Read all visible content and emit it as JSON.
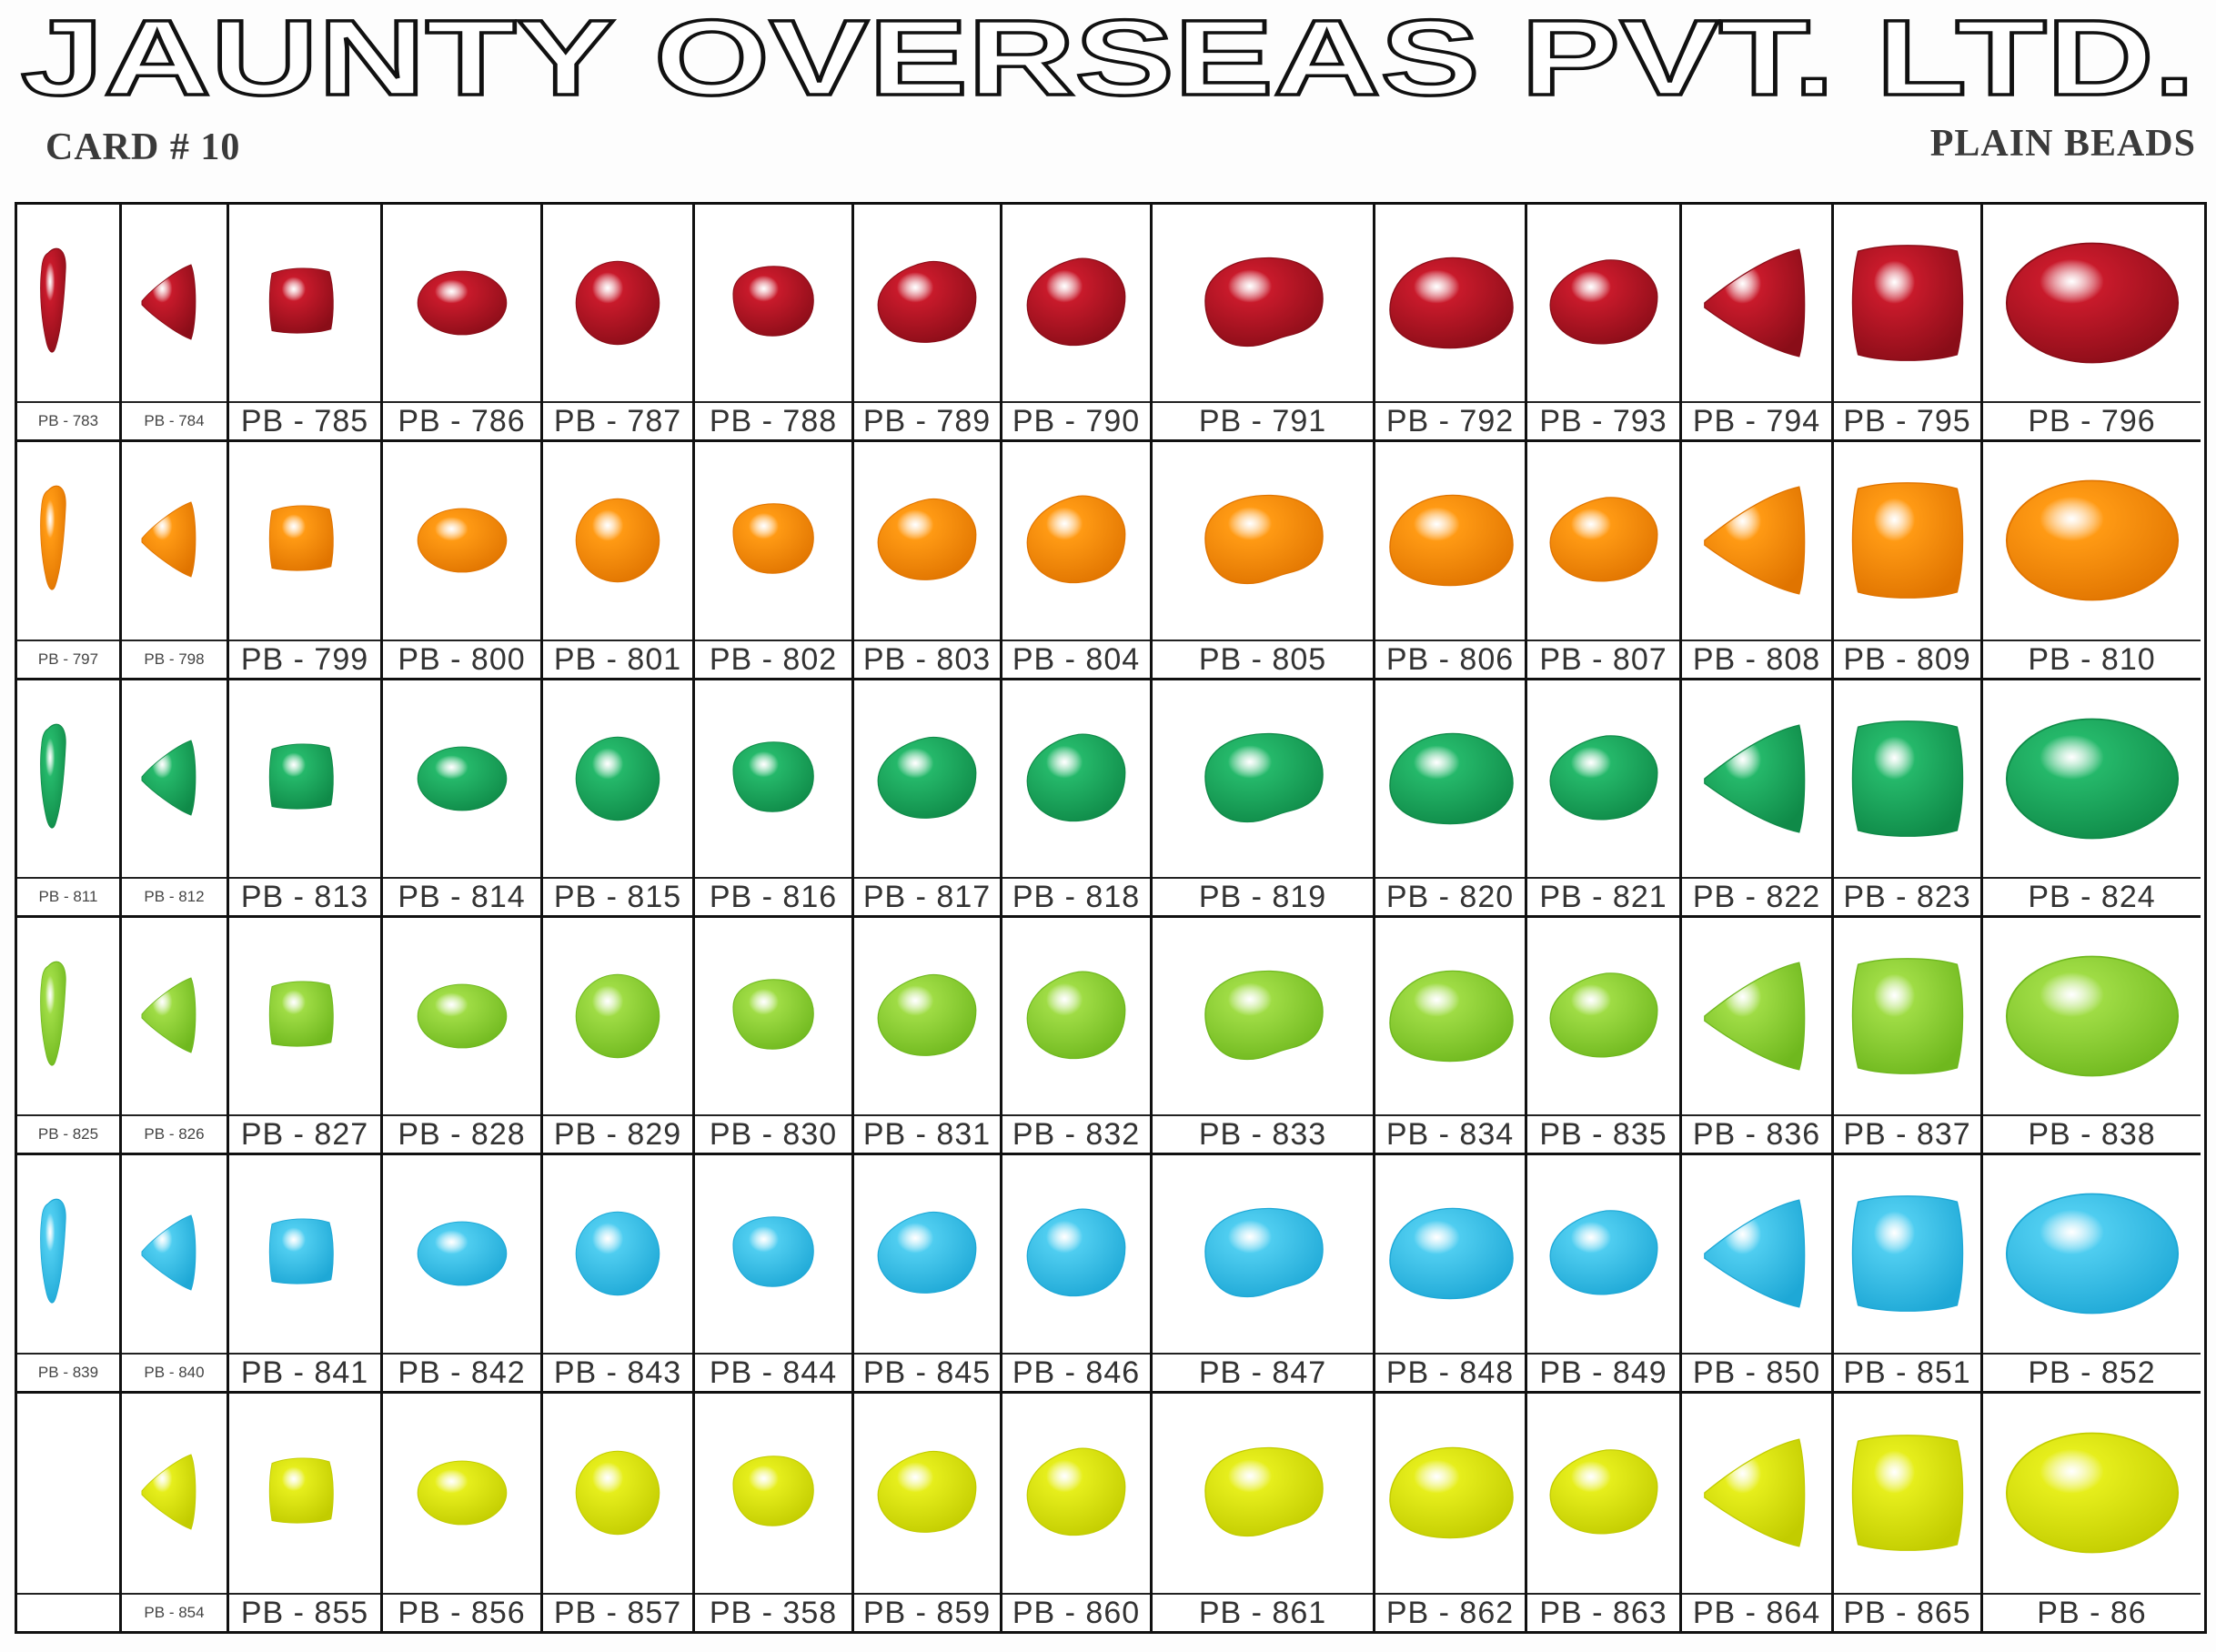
{
  "header": {
    "company": "JAUNTY OVERSEAS PVT. LTD.",
    "card": "CARD # 10",
    "category": "PLAIN BEADS"
  },
  "columns": [
    "drop",
    "cone",
    "cube",
    "oval",
    "round",
    "nugget-small",
    "nugget",
    "nugget",
    "nugget-large",
    "nugget-round",
    "nugget",
    "triangle",
    "pillow",
    "oval-large"
  ],
  "rows": [
    {
      "color": "red",
      "fill": "#c81a2b",
      "dark": "#8a0d18",
      "codes": [
        "PB - 783",
        "PB - 784",
        "PB - 785",
        "PB - 786",
        "PB - 787",
        "PB - 788",
        "PB - 789",
        "PB - 790",
        "PB - 791",
        "PB - 792",
        "PB - 793",
        "PB - 794",
        "PB - 795",
        "PB - 796"
      ]
    },
    {
      "color": "orange",
      "fill": "#ff9a14",
      "dark": "#e07400",
      "codes": [
        "PB - 797",
        "PB - 798",
        "PB - 799",
        "PB - 800",
        "PB - 801",
        "PB - 802",
        "PB - 803",
        "PB - 804",
        "PB - 805",
        "PB - 806",
        "PB - 807",
        "PB - 808",
        "PB - 809",
        "PB - 810"
      ]
    },
    {
      "color": "green",
      "fill": "#25b86a",
      "dark": "#0f8a48",
      "codes": [
        "PB - 811",
        "PB - 812",
        "PB - 813",
        "PB - 814",
        "PB - 815",
        "PB - 816",
        "PB - 817",
        "PB - 818",
        "PB - 819",
        "PB - 820",
        "PB - 821",
        "PB - 822",
        "PB - 823",
        "PB - 824"
      ]
    },
    {
      "color": "lime",
      "fill": "#9fdc45",
      "dark": "#6fb81e",
      "codes": [
        "PB - 825",
        "PB - 826",
        "PB - 827",
        "PB - 828",
        "PB - 829",
        "PB - 830",
        "PB - 831",
        "PB - 832",
        "PB - 833",
        "PB - 834",
        "PB - 835",
        "PB - 836",
        "PB - 837",
        "PB - 838"
      ]
    },
    {
      "color": "aqua",
      "fill": "#4fcdf0",
      "dark": "#1ea8d6",
      "codes": [
        "PB - 839",
        "PB - 840",
        "PB - 841",
        "PB - 842",
        "PB - 843",
        "PB - 844",
        "PB - 845",
        "PB - 846",
        "PB - 847",
        "PB - 848",
        "PB - 849",
        "PB - 850",
        "PB - 851",
        "PB - 852"
      ]
    },
    {
      "color": "yellow",
      "fill": "#e6ee1c",
      "dark": "#c2cc00",
      "codes": [
        "",
        "PB - 854",
        "PB - 855",
        "PB - 856",
        "PB - 857",
        "PB - 358",
        "PB - 859",
        "PB - 860",
        "PB - 861",
        "PB - 862",
        "PB - 863",
        "PB - 864",
        "PB - 865",
        "PB - 86"
      ]
    }
  ]
}
